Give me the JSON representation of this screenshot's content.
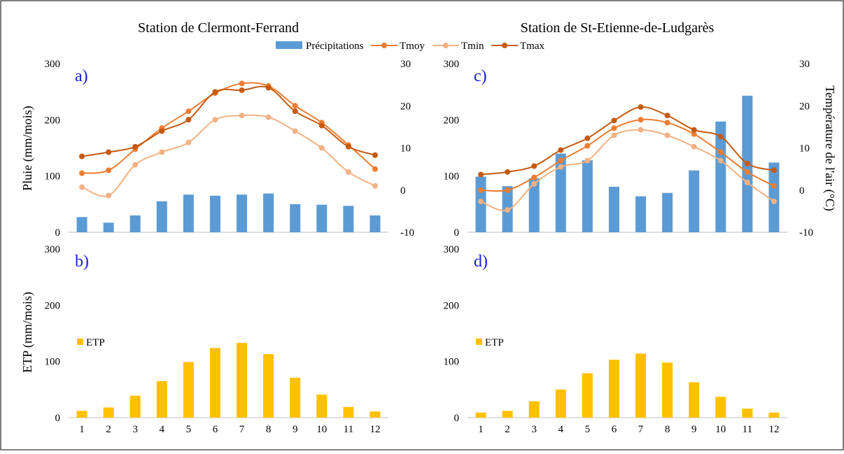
{
  "colors": {
    "precip": "#5b9bd5",
    "etp": "#ffc000",
    "tmoy": "#ed7d31",
    "tmin": "#f4b183",
    "tmax": "#c55a11",
    "panel_letter": "#1a1ae6"
  },
  "legend": {
    "precip": "Précipitations",
    "tmoy": "Tmoy",
    "tmin": "Tmin",
    "tmax": "Tmax",
    "etp": "ETP"
  },
  "axes": {
    "ylabel_rain": "Pluie (mm/mois)",
    "ylabel_etp": "ETP (mm/mois)",
    "ylabel_temp": "Température de l'air (°C)"
  },
  "chart_data": [
    {
      "id": "a",
      "panel_label": "a)",
      "title": "Station de Clermont-Ferrand",
      "type": "bar+line",
      "categories": [
        "1",
        "2",
        "3",
        "4",
        "5",
        "6",
        "7",
        "8",
        "9",
        "10",
        "11",
        "12"
      ],
      "ylim": [
        0,
        300
      ],
      "y_ticks": [
        "0",
        "100",
        "200",
        "300"
      ],
      "y2lim": [
        -10,
        30
      ],
      "y2_ticks": [
        "-10",
        "0",
        "10",
        "20",
        "30"
      ],
      "series": [
        {
          "name": "Précipitations",
          "kind": "bar",
          "axis": "left",
          "values": [
            27,
            17,
            30,
            55,
            67,
            65,
            67,
            69,
            50,
            49,
            47,
            30
          ]
        },
        {
          "name": "Tmoy",
          "kind": "line",
          "axis": "right",
          "values": [
            4,
            4.7,
            9.7,
            14.7,
            18.7,
            23,
            25.3,
            24.7,
            20,
            16,
            10.7,
            5
          ]
        },
        {
          "name": "Tmin",
          "kind": "line",
          "axis": "right",
          "values": [
            0.7,
            -1.3,
            6,
            9,
            11.3,
            16.7,
            17.7,
            17.3,
            14,
            10,
            4.3,
            1
          ]
        },
        {
          "name": "Tmax",
          "kind": "line",
          "axis": "right",
          "values": [
            8,
            9,
            10.3,
            14,
            16.7,
            23.3,
            23.7,
            24.3,
            18.7,
            15.3,
            10.3,
            8.3
          ]
        }
      ]
    },
    {
      "id": "b",
      "panel_label": "b)",
      "type": "bar",
      "categories": [
        "1",
        "2",
        "3",
        "4",
        "5",
        "6",
        "7",
        "8",
        "9",
        "10",
        "11",
        "12"
      ],
      "ylim": [
        0,
        300
      ],
      "y_ticks": [
        "0",
        "100",
        "200",
        "300"
      ],
      "series": [
        {
          "name": "ETP",
          "kind": "bar",
          "values": [
            12,
            18,
            39,
            65,
            99,
            124,
            133,
            113,
            71,
            41,
            19,
            11
          ]
        }
      ]
    },
    {
      "id": "c",
      "panel_label": "c)",
      "title": "Station de St-Etienne-de-Ludgarès",
      "type": "bar+line",
      "categories": [
        "1",
        "2",
        "3",
        "4",
        "5",
        "6",
        "7",
        "8",
        "9",
        "10",
        "11",
        "12"
      ],
      "ylim": [
        0,
        300
      ],
      "y_ticks": [
        "0",
        "100",
        "200",
        "300"
      ],
      "y2lim": [
        -10,
        30
      ],
      "y2_ticks": [
        "-10",
        "0",
        "10",
        "20",
        "30"
      ],
      "series": [
        {
          "name": "Précipitations",
          "kind": "bar",
          "axis": "left",
          "values": [
            99,
            82,
            96,
            140,
            128,
            81,
            64,
            70,
            110,
            197,
            243,
            124
          ]
        },
        {
          "name": "Tmoy",
          "kind": "line",
          "axis": "right",
          "values": [
            0,
            0,
            3,
            7,
            10.5,
            14.7,
            16.7,
            16,
            13.3,
            9,
            4.3,
            1
          ]
        },
        {
          "name": "Tmin",
          "kind": "line",
          "axis": "right",
          "values": [
            -2.7,
            -4.7,
            1.5,
            5.5,
            7,
            13,
            14.3,
            13,
            10.3,
            7,
            1.8,
            -2.7
          ]
        },
        {
          "name": "Tmax",
          "kind": "line",
          "axis": "right",
          "values": [
            3.7,
            4.3,
            5.7,
            9.5,
            12.3,
            16.5,
            19.7,
            17.7,
            14.3,
            12.7,
            6.3,
            4.7
          ]
        }
      ]
    },
    {
      "id": "d",
      "panel_label": "d)",
      "type": "bar",
      "categories": [
        "1",
        "2",
        "3",
        "4",
        "5",
        "6",
        "7",
        "8",
        "9",
        "10",
        "11",
        "12"
      ],
      "ylim": [
        0,
        300
      ],
      "y_ticks": [
        "0",
        "100",
        "200",
        "300"
      ],
      "series": [
        {
          "name": "ETP",
          "kind": "bar",
          "values": [
            9,
            12,
            29,
            50,
            79,
            103,
            114,
            98,
            63,
            37,
            16,
            9
          ]
        }
      ]
    }
  ]
}
